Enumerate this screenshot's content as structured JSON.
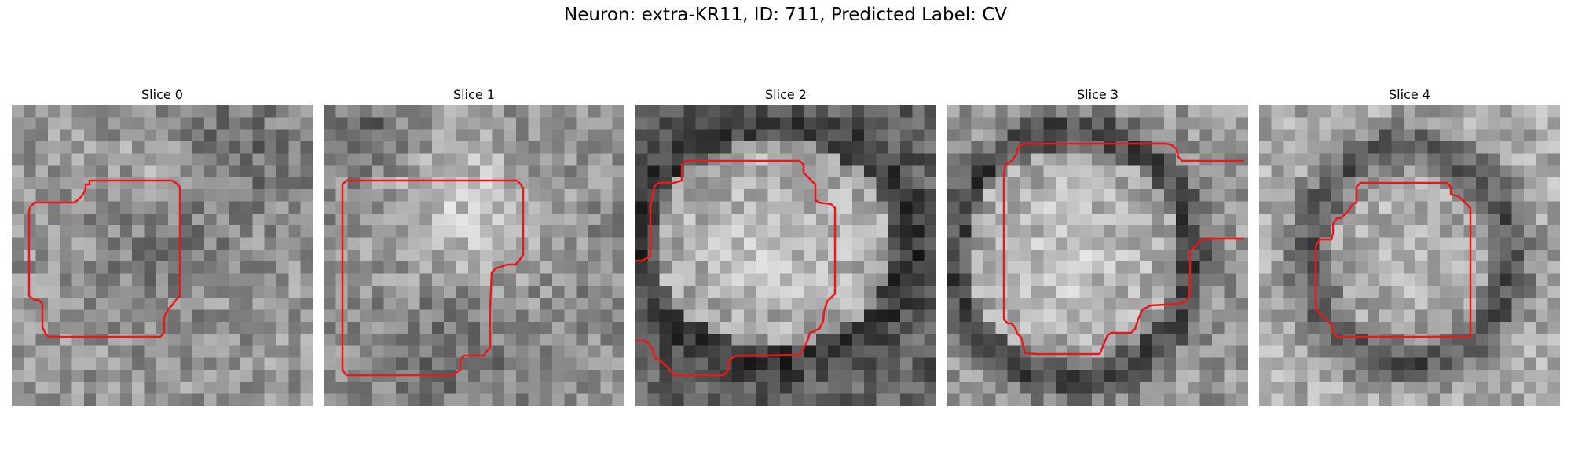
{
  "figure": {
    "title": "Neuron: extra-KR11, ID: 711, Predicted Label: CV"
  },
  "panels": [
    {
      "title": "Slice 0"
    },
    {
      "title": "Slice 1"
    },
    {
      "title": "Slice 2"
    },
    {
      "title": "Slice 3"
    },
    {
      "title": "Slice 4"
    }
  ],
  "contour_color": "#e8191a"
}
